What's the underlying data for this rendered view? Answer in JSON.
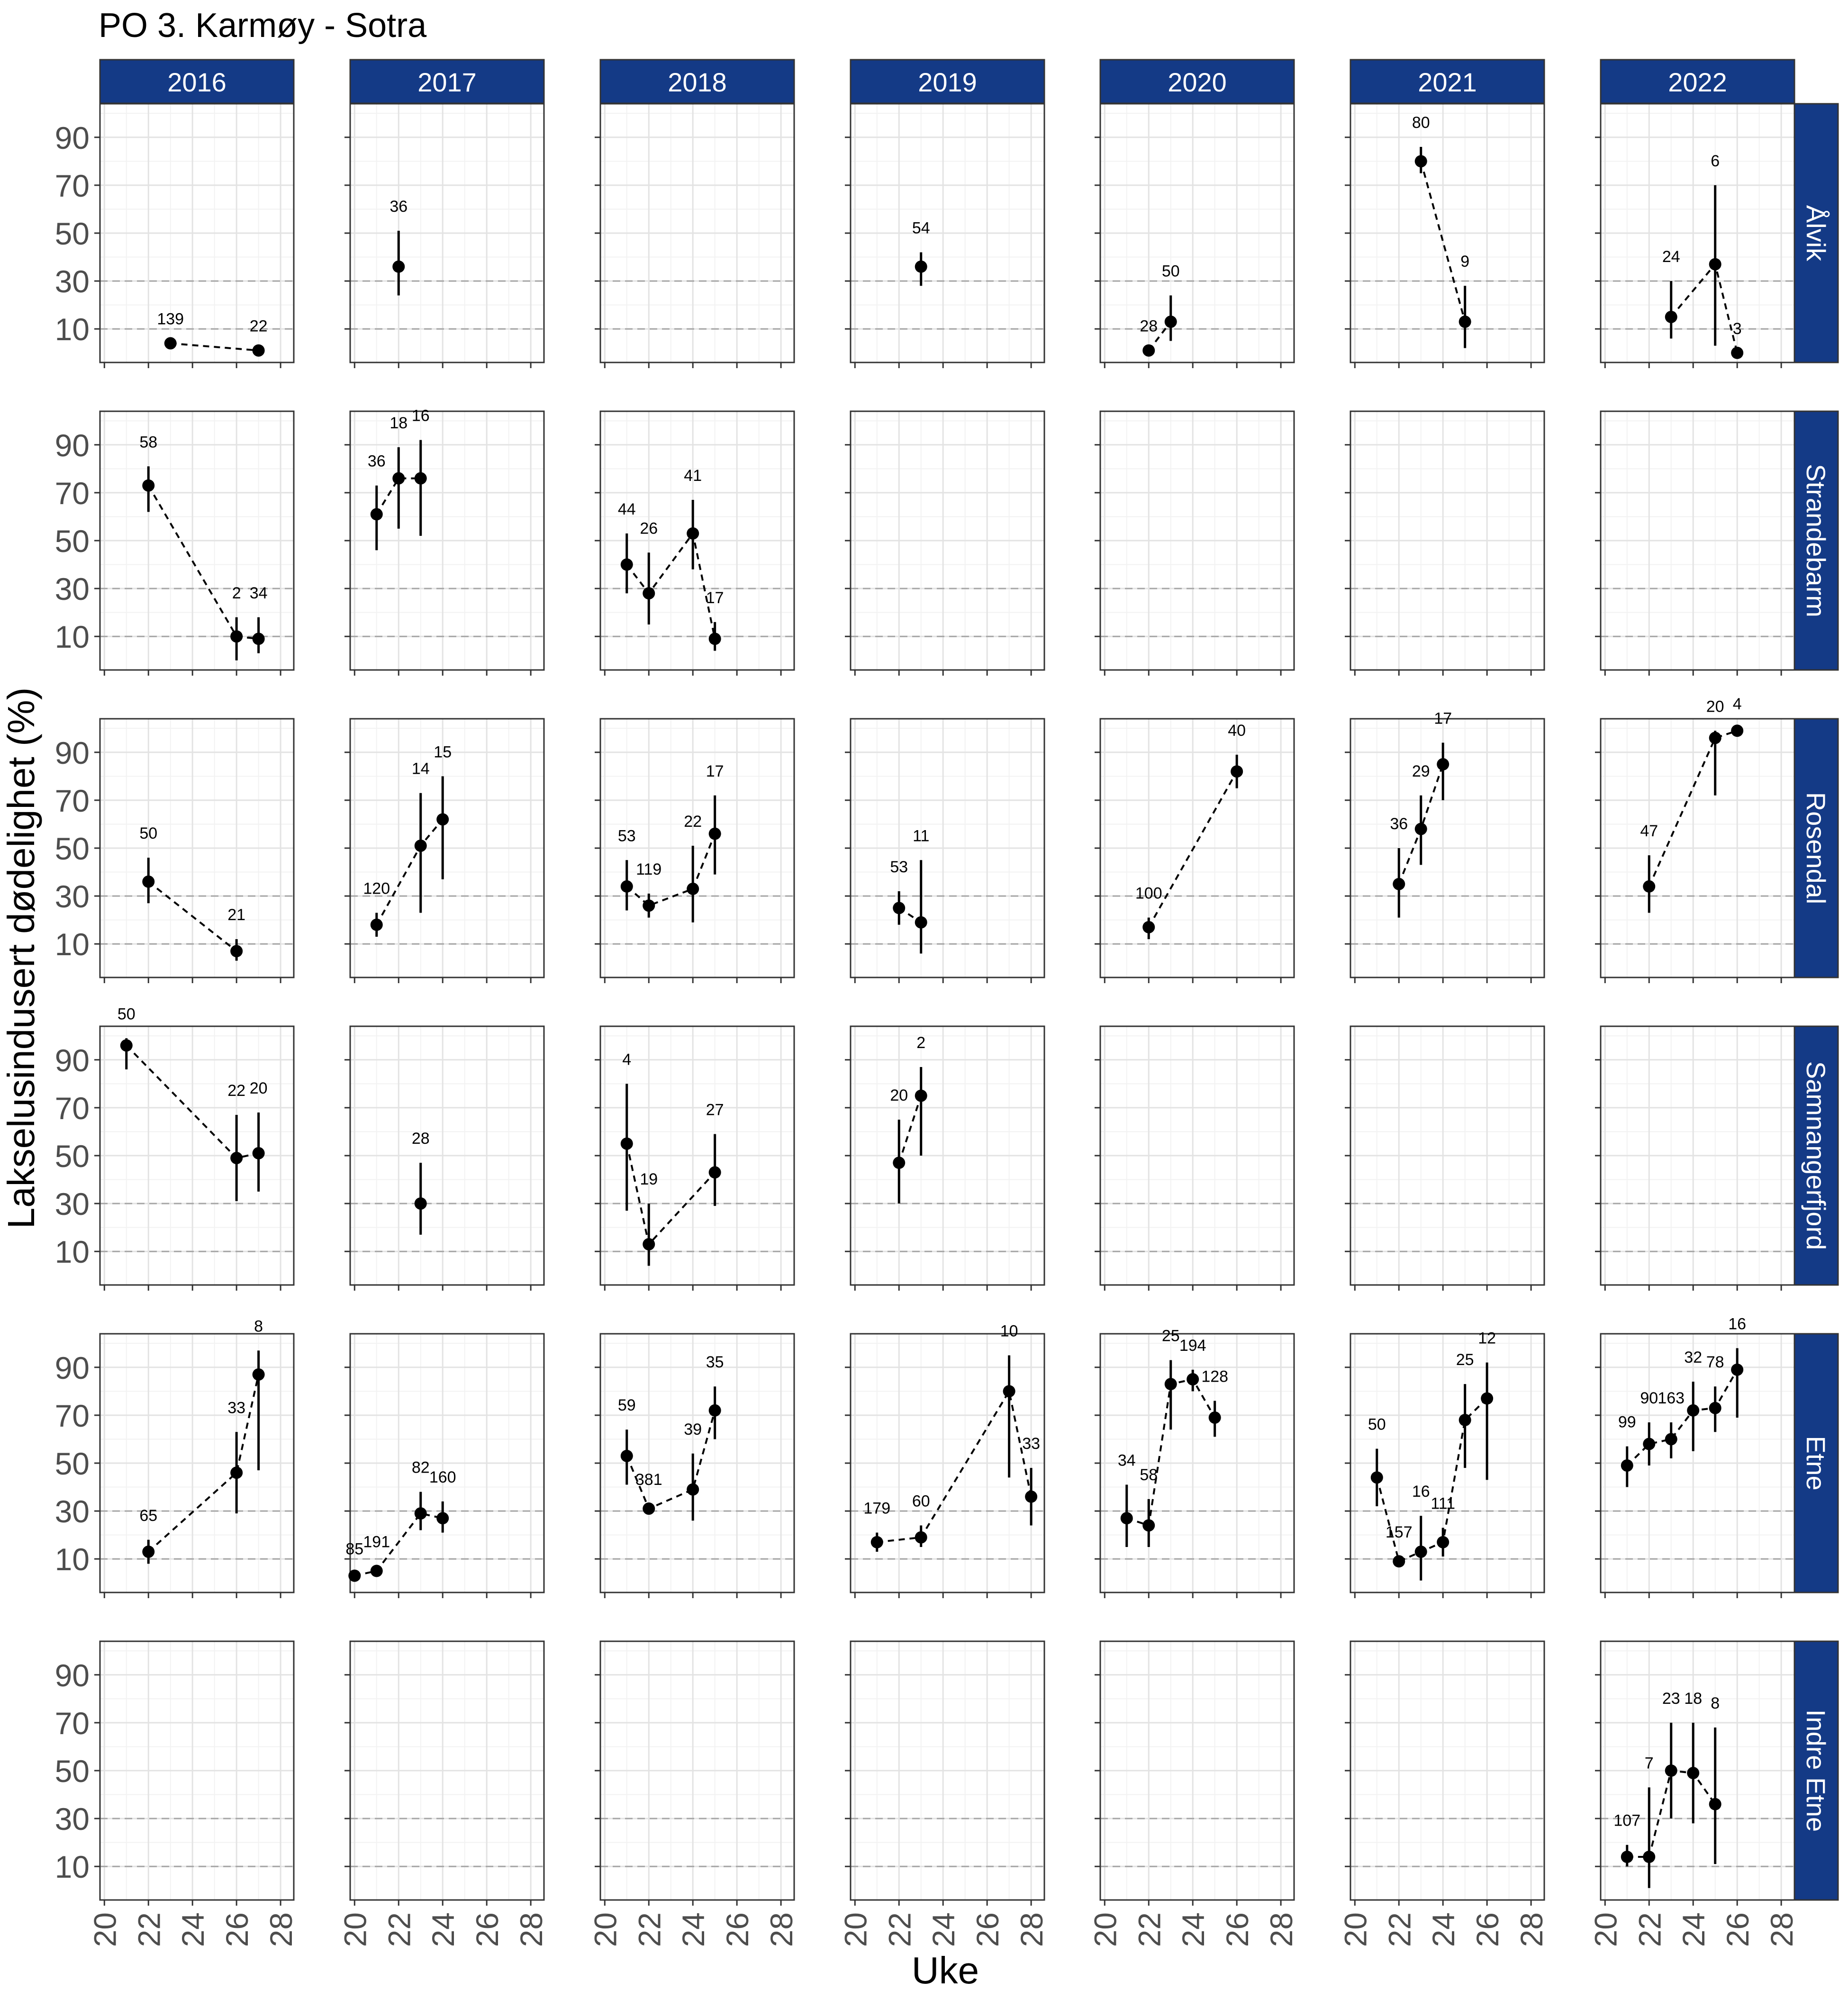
{
  "title": "PO 3. Karmøy - Sotra",
  "chart_data": {
    "type": "scatter",
    "title": "PO 3. Karmøy - Sotra",
    "xlabel": "Uke",
    "ylabel": "Lakselusindusert dødelighet (%)",
    "xlim": [
      19.8,
      28.6
    ],
    "ylim": [
      -4,
      104
    ],
    "x_ticks": [
      "20",
      "22",
      "24",
      "26",
      "28"
    ],
    "y_ticks": [
      "10",
      "30",
      "50",
      "70",
      "90"
    ],
    "reference_lines": [
      10,
      30
    ],
    "grid": true,
    "years": [
      "2016",
      "2017",
      "2018",
      "2019",
      "2020",
      "2021",
      "2022"
    ],
    "locations": [
      "Ålvik",
      "Strandebarm",
      "Rosendal",
      "Samnangerfjord",
      "Etne",
      "Indre Etne"
    ],
    "strip_color": "#143a86",
    "panels": [
      {
        "location": "Ålvik",
        "year": "2016",
        "points": [
          {
            "week": 23,
            "y": 4,
            "lo": 4,
            "hi": 4,
            "n": "139"
          },
          {
            "week": 27,
            "y": 1,
            "lo": 1,
            "hi": 1,
            "n": "22"
          }
        ]
      },
      {
        "location": "Ålvik",
        "year": "2017",
        "points": [
          {
            "week": 22,
            "y": 36,
            "lo": 24,
            "hi": 51,
            "n": "36"
          }
        ]
      },
      {
        "location": "Ålvik",
        "year": "2018",
        "points": []
      },
      {
        "location": "Ålvik",
        "year": "2019",
        "points": [
          {
            "week": 23,
            "y": 36,
            "lo": 28,
            "hi": 42,
            "n": "54"
          }
        ]
      },
      {
        "location": "Ålvik",
        "year": "2020",
        "points": [
          {
            "week": 22,
            "y": 1,
            "lo": 1,
            "hi": 1,
            "n": "28"
          },
          {
            "week": 23,
            "y": 13,
            "lo": 5,
            "hi": 24,
            "n": "50"
          }
        ]
      },
      {
        "location": "Ålvik",
        "year": "2021",
        "points": [
          {
            "week": 23,
            "y": 80,
            "lo": 75,
            "hi": 86,
            "n": "80"
          },
          {
            "week": 25,
            "y": 13,
            "lo": 2,
            "hi": 28,
            "n": "9"
          }
        ]
      },
      {
        "location": "Ålvik",
        "year": "2022",
        "points": [
          {
            "week": 23,
            "y": 15,
            "lo": 6,
            "hi": 30,
            "n": "24"
          },
          {
            "week": 25,
            "y": 37,
            "lo": 3,
            "hi": 70,
            "n": "6"
          },
          {
            "week": 26,
            "y": 0,
            "lo": 0,
            "hi": 0,
            "n": "3"
          }
        ]
      },
      {
        "location": "Strandebarm",
        "year": "2016",
        "points": [
          {
            "week": 22,
            "y": 73,
            "lo": 62,
            "hi": 81,
            "n": "58"
          },
          {
            "week": 26,
            "y": 10,
            "lo": 0,
            "hi": 18,
            "n": "2"
          },
          {
            "week": 27,
            "y": 9,
            "lo": 3,
            "hi": 18,
            "n": "34"
          }
        ]
      },
      {
        "location": "Strandebarm",
        "year": "2017",
        "points": [
          {
            "week": 21,
            "y": 61,
            "lo": 46,
            "hi": 73,
            "n": "36"
          },
          {
            "week": 22,
            "y": 76,
            "lo": 55,
            "hi": 89,
            "n": "18"
          },
          {
            "week": 23,
            "y": 76,
            "lo": 52,
            "hi": 92,
            "n": "16"
          }
        ]
      },
      {
        "location": "Strandebarm",
        "year": "2018",
        "points": [
          {
            "week": 21,
            "y": 40,
            "lo": 28,
            "hi": 53,
            "n": "44"
          },
          {
            "week": 22,
            "y": 28,
            "lo": 15,
            "hi": 45,
            "n": "26"
          },
          {
            "week": 24,
            "y": 53,
            "lo": 38,
            "hi": 67,
            "n": "41"
          },
          {
            "week": 25,
            "y": 9,
            "lo": 4,
            "hi": 16,
            "n": "17"
          }
        ]
      },
      {
        "location": "Strandebarm",
        "year": "2019",
        "points": []
      },
      {
        "location": "Strandebarm",
        "year": "2020",
        "points": []
      },
      {
        "location": "Strandebarm",
        "year": "2021",
        "points": []
      },
      {
        "location": "Strandebarm",
        "year": "2022",
        "points": []
      },
      {
        "location": "Rosendal",
        "year": "2016",
        "points": [
          {
            "week": 22,
            "y": 36,
            "lo": 27,
            "hi": 46,
            "n": "50"
          },
          {
            "week": 26,
            "y": 7,
            "lo": 3,
            "hi": 12,
            "n": "21"
          }
        ]
      },
      {
        "location": "Rosendal",
        "year": "2017",
        "points": [
          {
            "week": 21,
            "y": 18,
            "lo": 13,
            "hi": 23,
            "n": "120"
          },
          {
            "week": 23,
            "y": 51,
            "lo": 23,
            "hi": 73,
            "n": "14"
          },
          {
            "week": 24,
            "y": 62,
            "lo": 37,
            "hi": 80,
            "n": "15"
          }
        ]
      },
      {
        "location": "Rosendal",
        "year": "2018",
        "points": [
          {
            "week": 21,
            "y": 34,
            "lo": 24,
            "hi": 45,
            "n": "53"
          },
          {
            "week": 22,
            "y": 26,
            "lo": 21,
            "hi": 31,
            "n": "119"
          },
          {
            "week": 24,
            "y": 33,
            "lo": 19,
            "hi": 51,
            "n": "22"
          },
          {
            "week": 25,
            "y": 56,
            "lo": 39,
            "hi": 72,
            "n": "17"
          }
        ]
      },
      {
        "location": "Rosendal",
        "year": "2019",
        "points": [
          {
            "week": 22,
            "y": 25,
            "lo": 18,
            "hi": 32,
            "n": "53"
          },
          {
            "week": 23,
            "y": 19,
            "lo": 6,
            "hi": 45,
            "n": "11"
          }
        ]
      },
      {
        "location": "Rosendal",
        "year": "2020",
        "points": [
          {
            "week": 22,
            "y": 17,
            "lo": 12,
            "hi": 21,
            "n": "100"
          },
          {
            "week": 26,
            "y": 82,
            "lo": 75,
            "hi": 89,
            "n": "40"
          }
        ]
      },
      {
        "location": "Rosendal",
        "year": "2021",
        "points": [
          {
            "week": 22,
            "y": 35,
            "lo": 21,
            "hi": 50,
            "n": "36"
          },
          {
            "week": 23,
            "y": 58,
            "lo": 43,
            "hi": 72,
            "n": "29"
          },
          {
            "week": 24,
            "y": 85,
            "lo": 70,
            "hi": 94,
            "n": "17"
          }
        ]
      },
      {
        "location": "Rosendal",
        "year": "2022",
        "points": [
          {
            "week": 22,
            "y": 34,
            "lo": 23,
            "hi": 47,
            "n": "47"
          },
          {
            "week": 25,
            "y": 96,
            "lo": 72,
            "hi": 99,
            "n": "20"
          },
          {
            "week": 26,
            "y": 99,
            "lo": 99,
            "hi": 100,
            "n": "4"
          }
        ]
      },
      {
        "location": "Samnangerfjord",
        "year": "2016",
        "points": [
          {
            "week": 21,
            "y": 96,
            "lo": 86,
            "hi": 99,
            "n": "50"
          },
          {
            "week": 26,
            "y": 49,
            "lo": 31,
            "hi": 67,
            "n": "22"
          },
          {
            "week": 27,
            "y": 51,
            "lo": 35,
            "hi": 68,
            "n": "20"
          }
        ]
      },
      {
        "location": "Samnangerfjord",
        "year": "2017",
        "points": [
          {
            "week": 23,
            "y": 30,
            "lo": 17,
            "hi": 47,
            "n": "28"
          }
        ]
      },
      {
        "location": "Samnangerfjord",
        "year": "2018",
        "points": [
          {
            "week": 21,
            "y": 55,
            "lo": 27,
            "hi": 80,
            "n": "4"
          },
          {
            "week": 22,
            "y": 13,
            "lo": 4,
            "hi": 30,
            "n": "19"
          },
          {
            "week": 25,
            "y": 43,
            "lo": 29,
            "hi": 59,
            "n": "27"
          }
        ]
      },
      {
        "location": "Samnangerfjord",
        "year": "2019",
        "points": [
          {
            "week": 22,
            "y": 47,
            "lo": 30,
            "hi": 65,
            "n": "20"
          },
          {
            "week": 23,
            "y": 75,
            "lo": 50,
            "hi": 87,
            "n": "2"
          }
        ]
      },
      {
        "location": "Samnangerfjord",
        "year": "2020",
        "points": []
      },
      {
        "location": "Samnangerfjord",
        "year": "2021",
        "points": []
      },
      {
        "location": "Samnangerfjord",
        "year": "2022",
        "points": []
      },
      {
        "location": "Etne",
        "year": "2016",
        "points": [
          {
            "week": 22,
            "y": 13,
            "lo": 8,
            "hi": 18,
            "n": "65"
          },
          {
            "week": 26,
            "y": 46,
            "lo": 29,
            "hi": 63,
            "n": "33"
          },
          {
            "week": 27,
            "y": 87,
            "lo": 47,
            "hi": 97,
            "n": "8"
          }
        ]
      },
      {
        "location": "Etne",
        "year": "2017",
        "points": [
          {
            "week": 20,
            "y": 3,
            "lo": 2,
            "hi": 4,
            "n": "85"
          },
          {
            "week": 21,
            "y": 5,
            "lo": 3,
            "hi": 7,
            "n": "191"
          },
          {
            "week": 23,
            "y": 29,
            "lo": 22,
            "hi": 38,
            "n": "82"
          },
          {
            "week": 24,
            "y": 27,
            "lo": 21,
            "hi": 34,
            "n": "160"
          }
        ]
      },
      {
        "location": "Etne",
        "year": "2018",
        "points": [
          {
            "week": 21,
            "y": 53,
            "lo": 41,
            "hi": 64,
            "n": "59"
          },
          {
            "week": 22,
            "y": 31,
            "lo": 29,
            "hi": 33,
            "n": "381"
          },
          {
            "week": 24,
            "y": 39,
            "lo": 26,
            "hi": 54,
            "n": "39"
          },
          {
            "week": 25,
            "y": 72,
            "lo": 60,
            "hi": 82,
            "n": "35"
          }
        ]
      },
      {
        "location": "Etne",
        "year": "2019",
        "points": [
          {
            "week": 21,
            "y": 17,
            "lo": 13,
            "hi": 21,
            "n": "179"
          },
          {
            "week": 23,
            "y": 19,
            "lo": 15,
            "hi": 24,
            "n": "60"
          },
          {
            "week": 27,
            "y": 80,
            "lo": 44,
            "hi": 95,
            "n": "10"
          },
          {
            "week": 28,
            "y": 36,
            "lo": 24,
            "hi": 48,
            "n": "33"
          }
        ]
      },
      {
        "location": "Etne",
        "year": "2020",
        "points": [
          {
            "week": 21,
            "y": 27,
            "lo": 15,
            "hi": 41,
            "n": "34"
          },
          {
            "week": 22,
            "y": 24,
            "lo": 15,
            "hi": 35,
            "n": "58"
          },
          {
            "week": 23,
            "y": 83,
            "lo": 64,
            "hi": 93,
            "n": "25"
          },
          {
            "week": 24,
            "y": 85,
            "lo": 80,
            "hi": 89,
            "n": "194"
          },
          {
            "week": 25,
            "y": 69,
            "lo": 61,
            "hi": 76,
            "n": "128"
          }
        ]
      },
      {
        "location": "Etne",
        "year": "2021",
        "points": [
          {
            "week": 21,
            "y": 44,
            "lo": 32,
            "hi": 56,
            "n": "50"
          },
          {
            "week": 22,
            "y": 9,
            "lo": 7,
            "hi": 11,
            "n": "157"
          },
          {
            "week": 23,
            "y": 13,
            "lo": 1,
            "hi": 28,
            "n": "16"
          },
          {
            "week": 24,
            "y": 17,
            "lo": 11,
            "hi": 23,
            "n": "111"
          },
          {
            "week": 25,
            "y": 68,
            "lo": 48,
            "hi": 83,
            "n": "25"
          },
          {
            "week": 26,
            "y": 77,
            "lo": 43,
            "hi": 92,
            "n": "12"
          }
        ]
      },
      {
        "location": "Etne",
        "year": "2022",
        "points": [
          {
            "week": 21,
            "y": 49,
            "lo": 40,
            "hi": 57,
            "n": "99"
          },
          {
            "week": 22,
            "y": 58,
            "lo": 49,
            "hi": 67,
            "n": "90"
          },
          {
            "week": 23,
            "y": 60,
            "lo": 52,
            "hi": 67,
            "n": "163"
          },
          {
            "week": 24,
            "y": 72,
            "lo": 55,
            "hi": 84,
            "n": "32"
          },
          {
            "week": 25,
            "y": 73,
            "lo": 63,
            "hi": 82,
            "n": "78"
          },
          {
            "week": 26,
            "y": 89,
            "lo": 69,
            "hi": 98,
            "n": "16"
          }
        ]
      },
      {
        "location": "Indre Etne",
        "year": "2016",
        "points": []
      },
      {
        "location": "Indre Etne",
        "year": "2017",
        "points": []
      },
      {
        "location": "Indre Etne",
        "year": "2018",
        "points": []
      },
      {
        "location": "Indre Etne",
        "year": "2019",
        "points": []
      },
      {
        "location": "Indre Etne",
        "year": "2020",
        "points": []
      },
      {
        "location": "Indre Etne",
        "year": "2021",
        "points": []
      },
      {
        "location": "Indre Etne",
        "year": "2022",
        "points": [
          {
            "week": 21,
            "y": 14,
            "lo": 10,
            "hi": 19,
            "n": "107"
          },
          {
            "week": 22,
            "y": 14,
            "lo": 1,
            "hi": 43,
            "n": "7"
          },
          {
            "week": 23,
            "y": 50,
            "lo": 30,
            "hi": 70,
            "n": "23"
          },
          {
            "week": 24,
            "y": 49,
            "lo": 28,
            "hi": 70,
            "n": "18"
          },
          {
            "week": 25,
            "y": 36,
            "lo": 11,
            "hi": 68,
            "n": "8"
          }
        ]
      }
    ]
  }
}
